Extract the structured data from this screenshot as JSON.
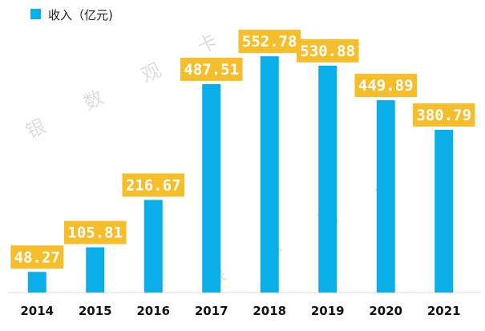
{
  "chart_data": {
    "type": "bar",
    "categories": [
      "2014",
      "2015",
      "2016",
      "2017",
      "2018",
      "2019",
      "2020",
      "2021"
    ],
    "series": [
      {
        "name": "收入（亿元)",
        "values": [
          48.27,
          105.81,
          216.67,
          487.51,
          552.78,
          530.88,
          449.89,
          380.79
        ]
      }
    ],
    "data_labels": [
      "48.27",
      "105.81",
      "216.67",
      "487.51",
      "552.78",
      "530.88",
      "449.89",
      "380.79"
    ],
    "ylim": [
      0,
      600
    ],
    "grid": false,
    "legend_position": "top-left",
    "colors": {
      "bar": "#0aaee8",
      "label_bg": "#f5be2a",
      "label_text": "#ffffff",
      "axis": "#dddddd"
    }
  },
  "watermark": {
    "chars_top": [
      "银",
      "数",
      "观",
      "卡"
    ],
    "chars_bottom": [
      "银",
      "数",
      "观",
      "卡"
    ]
  }
}
